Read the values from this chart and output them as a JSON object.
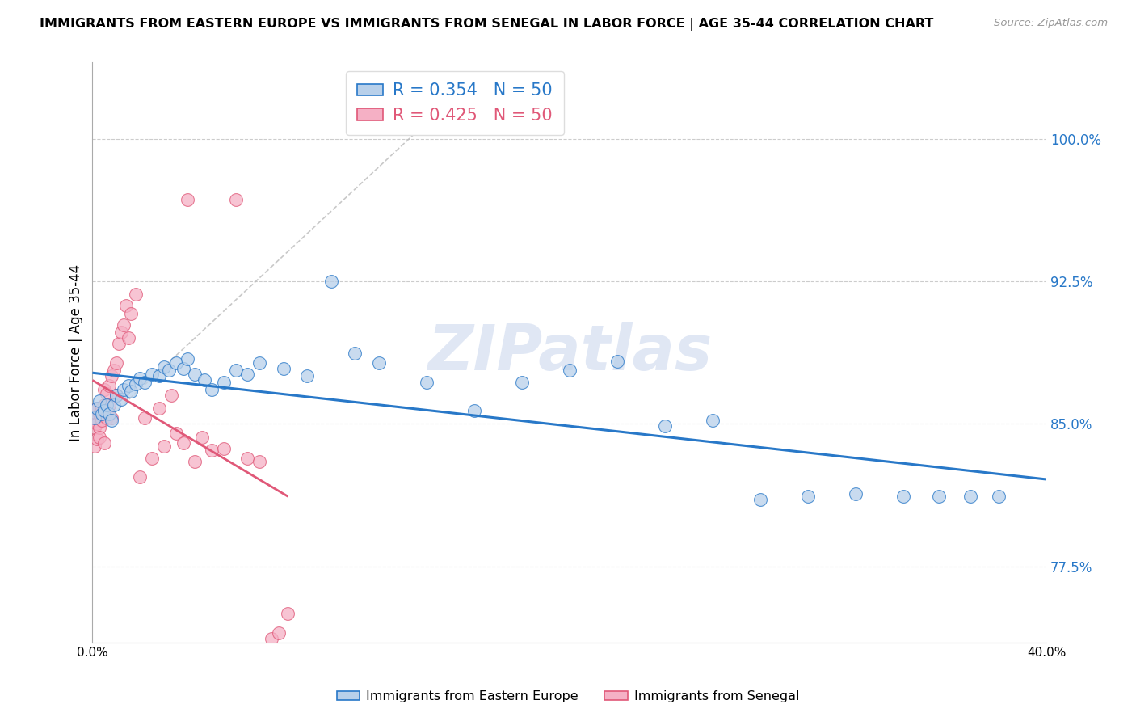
{
  "title": "IMMIGRANTS FROM EASTERN EUROPE VS IMMIGRANTS FROM SENEGAL IN LABOR FORCE | AGE 35-44 CORRELATION CHART",
  "source": "Source: ZipAtlas.com",
  "ylabel": "In Labor Force | Age 35-44",
  "ytick_labels": [
    "77.5%",
    "85.0%",
    "92.5%",
    "100.0%"
  ],
  "ytick_values": [
    0.775,
    0.85,
    0.925,
    1.0
  ],
  "xlim": [
    0.0,
    0.4
  ],
  "ylim": [
    0.735,
    1.04
  ],
  "blue_R": 0.354,
  "blue_N": 50,
  "pink_R": 0.425,
  "pink_N": 50,
  "legend_label_blue": "Immigrants from Eastern Europe",
  "legend_label_pink": "Immigrants from Senegal",
  "blue_color": "#b8d0ea",
  "pink_color": "#f5b0c5",
  "blue_line_color": "#2878c8",
  "pink_line_color": "#e05878",
  "blue_scatter": {
    "x": [
      0.001,
      0.002,
      0.003,
      0.004,
      0.005,
      0.006,
      0.007,
      0.008,
      0.009,
      0.01,
      0.012,
      0.013,
      0.015,
      0.016,
      0.018,
      0.02,
      0.022,
      0.025,
      0.028,
      0.03,
      0.032,
      0.035,
      0.038,
      0.04,
      0.043,
      0.047,
      0.05,
      0.055,
      0.06,
      0.065,
      0.07,
      0.08,
      0.09,
      0.1,
      0.11,
      0.12,
      0.14,
      0.16,
      0.18,
      0.2,
      0.22,
      0.24,
      0.26,
      0.28,
      0.3,
      0.32,
      0.34,
      0.355,
      0.368,
      0.38
    ],
    "y": [
      0.853,
      0.858,
      0.862,
      0.855,
      0.857,
      0.86,
      0.855,
      0.852,
      0.86,
      0.865,
      0.863,
      0.868,
      0.87,
      0.867,
      0.871,
      0.874,
      0.872,
      0.876,
      0.875,
      0.88,
      0.878,
      0.882,
      0.879,
      0.884,
      0.876,
      0.873,
      0.868,
      0.872,
      0.878,
      0.876,
      0.882,
      0.879,
      0.875,
      0.925,
      0.887,
      0.882,
      0.872,
      0.857,
      0.872,
      0.878,
      0.883,
      0.849,
      0.852,
      0.81,
      0.812,
      0.813,
      0.812,
      0.812,
      0.812,
      0.812
    ]
  },
  "pink_scatter": {
    "x": [
      0.001,
      0.001,
      0.001,
      0.001,
      0.002,
      0.002,
      0.002,
      0.003,
      0.003,
      0.003,
      0.004,
      0.004,
      0.005,
      0.005,
      0.005,
      0.006,
      0.006,
      0.007,
      0.007,
      0.008,
      0.008,
      0.009,
      0.01,
      0.01,
      0.011,
      0.012,
      0.013,
      0.014,
      0.015,
      0.016,
      0.018,
      0.02,
      0.022,
      0.025,
      0.028,
      0.03,
      0.033,
      0.035,
      0.038,
      0.04,
      0.043,
      0.046,
      0.05,
      0.055,
      0.06,
      0.065,
      0.07,
      0.075,
      0.078,
      0.082
    ],
    "y": [
      0.848,
      0.852,
      0.856,
      0.838,
      0.85,
      0.858,
      0.842,
      0.848,
      0.855,
      0.843,
      0.858,
      0.852,
      0.86,
      0.868,
      0.84,
      0.866,
      0.853,
      0.87,
      0.86,
      0.875,
      0.853,
      0.878,
      0.882,
      0.865,
      0.892,
      0.898,
      0.902,
      0.912,
      0.895,
      0.908,
      0.918,
      0.822,
      0.853,
      0.832,
      0.858,
      0.838,
      0.865,
      0.845,
      0.84,
      0.968,
      0.83,
      0.843,
      0.836,
      0.837,
      0.968,
      0.832,
      0.83,
      0.737,
      0.74,
      0.75
    ]
  },
  "grid_color": "#cccccc",
  "watermark": "ZIPatlas",
  "watermark_color": "#ccd8ee"
}
